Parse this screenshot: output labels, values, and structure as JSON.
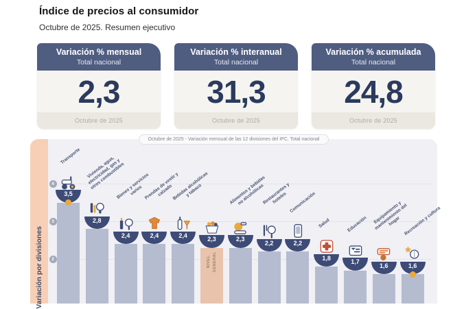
{
  "header": {
    "title": "Índice de precios al consumidor",
    "subtitle": "Octubre de 2025. Resumen ejecutivo"
  },
  "summary_cards": [
    {
      "title": "Variación % mensual",
      "scope": "Total nacional",
      "value": "2,3",
      "period": "Octubre de 2025"
    },
    {
      "title": "Variación % interanual",
      "scope": "Total nacional",
      "value": "31,3",
      "period": "Octubre de 2025"
    },
    {
      "title": "Variación % acumulada",
      "scope": "Total nacional",
      "value": "24,8",
      "period": "Octubre de 2025"
    }
  ],
  "chart_data": {
    "type": "bar",
    "title": "Octubre de 2025 - Variación mensual de las 12 divisiones del IPC. Total nacional",
    "ylabel": "Variación por divisiones",
    "yticks": [
      4,
      3,
      2
    ],
    "ylim": [
      1.5,
      4.5
    ],
    "grid": true,
    "categories": [
      "Transporte",
      "Vivienda, agua, electricidad, gas y otros combustibles",
      "Bienes y servicios varios",
      "Prendas de vestir y calzado",
      "Bebidas alcohólicas y tabaco",
      "Nivel general",
      "Alimentos y bebidas no alcohólicas",
      "Restaurantes y hoteles",
      "Comunicación",
      "Salud",
      "Educación",
      "Equipamiento y mantenimiento del hogar",
      "Recreación y cultura"
    ],
    "values": [
      3.5,
      2.8,
      2.4,
      2.4,
      2.4,
      2.3,
      2.3,
      2.2,
      2.2,
      1.8,
      1.7,
      1.6,
      1.6
    ],
    "value_labels": [
      "3,5",
      "2,8",
      "2,4",
      "2,4",
      "2,4",
      "2,3",
      "2,3",
      "2,2",
      "2,2",
      "1,8",
      "1,7",
      "1,6",
      "1,6"
    ],
    "general_level": {
      "index": 5,
      "label": "NIVEL GENERAL"
    },
    "icons": [
      "scooter-icon",
      "home-utilities-icon",
      "personal-care-icon",
      "clothing-icon",
      "alcohol-tobacco-icon",
      "shopping-basket-icon",
      "food-icon",
      "restaurant-icon",
      "phone-icon",
      "health-cross-icon",
      "education-icon",
      "home-equipment-icon",
      "recreation-icon"
    ],
    "max_marker_index": 0,
    "min_marker_index": 12,
    "colors": {
      "bar": "#b5bccf",
      "general_level_bar": "#e9c3ab",
      "badge": "#3d4b76",
      "marker": "#eba93b",
      "panel": "#f0f0f5",
      "axis_strip": "#f6cfb6",
      "card_header": "#4e5d80",
      "value_text": "#2b3a5e"
    }
  }
}
